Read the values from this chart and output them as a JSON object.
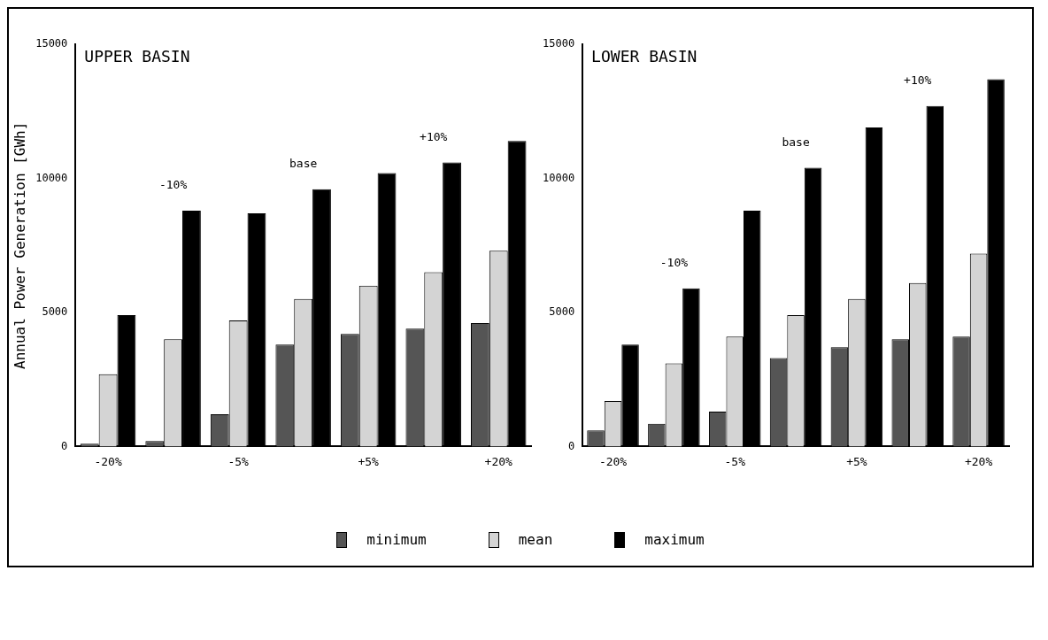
{
  "chart_data": [
    {
      "type": "bar",
      "title": "UPPER BASIN",
      "ylabel": "Annual Power Generation [GWh]",
      "categories": [
        "-20%",
        null,
        "-5%",
        null,
        "+5%",
        null,
        "+20%"
      ],
      "series": [
        {
          "name": "minimum",
          "color": "#555555",
          "values": [
            100,
            200,
            1200,
            3800,
            4200,
            4400,
            4600
          ]
        },
        {
          "name": "mean",
          "color": "#d4d4d4",
          "values": [
            2700,
            4000,
            4700,
            5500,
            6000,
            6500,
            7300
          ]
        },
        {
          "name": "maximum",
          "color": "#000000",
          "values": [
            4900,
            8800,
            8700,
            9600,
            10200,
            10600,
            11400
          ]
        }
      ],
      "ylim": [
        0,
        15000
      ],
      "yticks": [
        0,
        5000,
        10000,
        15000
      ],
      "grid": false,
      "legend": "bottom",
      "annotations": [
        "-10%",
        "base",
        "+10%"
      ]
    },
    {
      "type": "bar",
      "title": "LOWER BASIN",
      "categories": [
        "-20%",
        null,
        "-5%",
        null,
        "+5%",
        null,
        "+20%"
      ],
      "series": [
        {
          "color": "#555555",
          "values": [
            600,
            850,
            1300,
            3300,
            3700,
            4000,
            4100
          ]
        },
        {
          "color": "#d4d4d4",
          "values": [
            1700,
            3100,
            4100,
            4900,
            5500,
            6100,
            7200
          ]
        },
        {
          "color": "#000000",
          "values": [
            3800,
            5900,
            8800,
            10400,
            11900,
            12700,
            13700
          ]
        }
      ],
      "ylim": [
        0,
        15000
      ],
      "yticks": [
        0,
        5000,
        10000,
        15000
      ],
      "grid": false,
      "annotations": [
        "-10%",
        "base",
        "+10%"
      ]
    }
  ]
}
